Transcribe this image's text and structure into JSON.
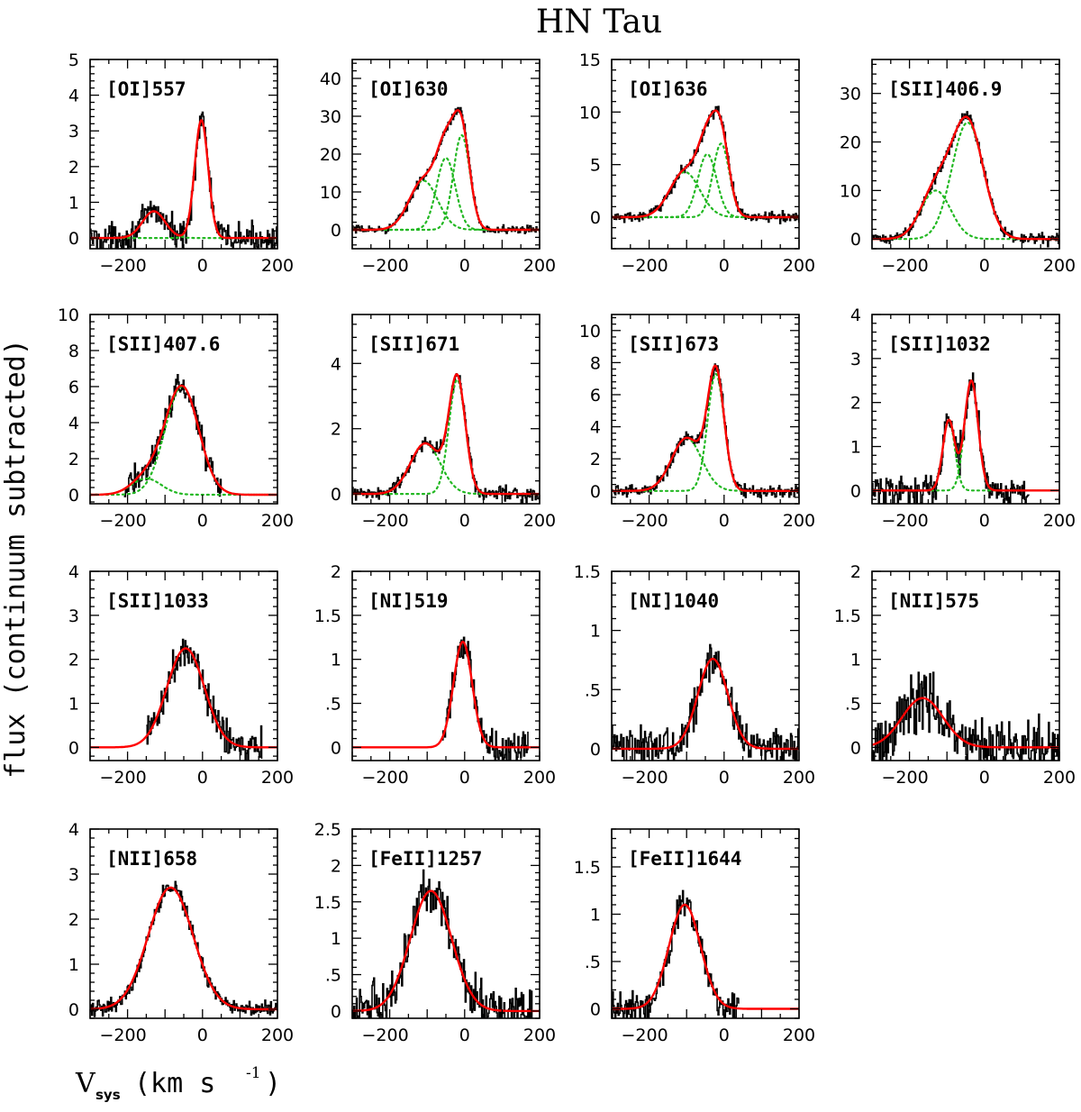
{
  "figure": {
    "title": "HN Tau",
    "ylabel": "flux (continuum subtracted)",
    "xlabel_main": "V",
    "xlabel_sub": "sys",
    "xlabel_units": "(km s",
    "xlabel_exp": "-1",
    "xlabel_close": ")",
    "colors": {
      "data": "#000000",
      "fit": "#ff0000",
      "components": "#22b822"
    }
  },
  "chart_data": [
    {
      "type": "line",
      "label": "[OI]557",
      "xlim": [
        -300,
        200
      ],
      "ylim": [
        -0.3,
        5
      ],
      "yticks": [
        0,
        1,
        2,
        3,
        4,
        5
      ],
      "xticks": [
        -200,
        0,
        200
      ],
      "noise": 0.35,
      "components": [
        {
          "amp": 3.3,
          "center": -3,
          "sigma": 18
        },
        {
          "amp": 0.75,
          "center": -130,
          "sigma": 30
        }
      ],
      "show_components": true,
      "data_range": [
        -300,
        200
      ]
    },
    {
      "type": "line",
      "label": "[OI]630",
      "xlim": [
        -300,
        200
      ],
      "ylim": [
        -5,
        45
      ],
      "yticks": [
        0,
        10,
        20,
        30,
        40
      ],
      "xticks": [
        -200,
        0,
        200
      ],
      "noise": 1.0,
      "components": [
        {
          "amp": 25,
          "center": -8,
          "sigma": 22
        },
        {
          "amp": 19,
          "center": -50,
          "sigma": 25
        },
        {
          "amp": 13,
          "center": -110,
          "sigma": 38
        }
      ],
      "show_components": true,
      "data_range": [
        -300,
        200
      ]
    },
    {
      "type": "line",
      "label": "[OI]636",
      "xlim": [
        -300,
        200
      ],
      "ylim": [
        -3,
        15
      ],
      "yticks": [
        0,
        5,
        10,
        15
      ],
      "xticks": [
        -200,
        0,
        200
      ],
      "noise": 0.45,
      "components": [
        {
          "amp": 7,
          "center": -8,
          "sigma": 22
        },
        {
          "amp": 6,
          "center": -45,
          "sigma": 25
        },
        {
          "amp": 4.3,
          "center": -105,
          "sigma": 40
        }
      ],
      "show_components": true,
      "data_range": [
        -300,
        200
      ]
    },
    {
      "type": "line",
      "label": "[SII]406.9",
      "xlim": [
        -300,
        200
      ],
      "ylim": [
        -2,
        37
      ],
      "yticks": [
        0,
        10,
        20,
        30
      ],
      "xticks": [
        -200,
        0,
        200
      ],
      "noise": 1.0,
      "components": [
        {
          "amp": 24,
          "center": -45,
          "sigma": 42
        },
        {
          "amp": 10,
          "center": -130,
          "sigma": 40
        }
      ],
      "show_components": true,
      "data_range": [
        -300,
        200
      ]
    },
    {
      "type": "line",
      "label": "[SII]407.6",
      "xlim": [
        -300,
        200
      ],
      "ylim": [
        -0.5,
        10
      ],
      "yticks": [
        0,
        2,
        4,
        6,
        8,
        10
      ],
      "xticks": [
        -200,
        0,
        200
      ],
      "noise": 0.7,
      "components": [
        {
          "amp": 6.0,
          "center": -55,
          "sigma": 45
        },
        {
          "amp": 0.9,
          "center": -150,
          "sigma": 40
        }
      ],
      "show_components": true,
      "data_range": [
        -210,
        50
      ]
    },
    {
      "type": "line",
      "label": "[SII]671",
      "xlim": [
        -300,
        200
      ],
      "ylim": [
        -0.3,
        5.5
      ],
      "yticks": [
        0,
        2,
        4
      ],
      "xticks": [
        -200,
        0,
        200
      ],
      "noise": 0.2,
      "components": [
        {
          "amp": 3.5,
          "center": -20,
          "sigma": 22
        },
        {
          "amp": 1.55,
          "center": -105,
          "sigma": 40
        }
      ],
      "show_components": true,
      "data_range": [
        -300,
        200
      ]
    },
    {
      "type": "line",
      "label": "[SII]673",
      "xlim": [
        -300,
        200
      ],
      "ylim": [
        -0.8,
        11
      ],
      "yticks": [
        0,
        2,
        4,
        6,
        8,
        10
      ],
      "xticks": [
        -200,
        0,
        200
      ],
      "noise": 0.35,
      "components": [
        {
          "amp": 7.3,
          "center": -22,
          "sigma": 22
        },
        {
          "amp": 3.3,
          "center": -100,
          "sigma": 40
        }
      ],
      "show_components": true,
      "data_range": [
        -300,
        200
      ]
    },
    {
      "type": "line",
      "label": "[SII]1032",
      "xlim": [
        -300,
        200
      ],
      "ylim": [
        -0.3,
        4
      ],
      "yticks": [
        0,
        1,
        2,
        3,
        4
      ],
      "xticks": [
        -200,
        0,
        200
      ],
      "noise": 0.35,
      "components": [
        {
          "amp": 2.5,
          "center": -35,
          "sigma": 18
        },
        {
          "amp": 1.6,
          "center": -95,
          "sigma": 16
        }
      ],
      "show_components": true,
      "data_range": [
        -300,
        120
      ]
    },
    {
      "type": "line",
      "label": "[SII]1033",
      "xlim": [
        -300,
        200
      ],
      "ylim": [
        -0.3,
        4
      ],
      "yticks": [
        0,
        1,
        2,
        3,
        4
      ],
      "xticks": [
        -200,
        0,
        200
      ],
      "noise": 0.35,
      "components": [
        {
          "amp": 2.25,
          "center": -45,
          "sigma": 50
        }
      ],
      "show_components": false,
      "data_range": [
        -150,
        160
      ]
    },
    {
      "type": "line",
      "label": "[NI]519",
      "xlim": [
        -300,
        200
      ],
      "ylim": [
        -0.15,
        2
      ],
      "yticks": [
        0,
        0.5,
        1,
        1.5,
        2
      ],
      "xticks": [
        -200,
        0,
        200
      ],
      "noise": 0.2,
      "components": [
        {
          "amp": 1.2,
          "center": -5,
          "sigma": 25
        }
      ],
      "show_components": false,
      "data_range": [
        -60,
        170
      ]
    },
    {
      "type": "line",
      "label": "[NI]1040",
      "xlim": [
        -300,
        200
      ],
      "ylim": [
        -0.1,
        1.5
      ],
      "yticks": [
        0,
        0.5,
        1,
        1.5
      ],
      "xticks": [
        -200,
        0,
        200
      ],
      "noise": 0.15,
      "components": [
        {
          "amp": 0.76,
          "center": -30,
          "sigma": 40
        }
      ],
      "show_components": false,
      "data_range": [
        -300,
        200
      ]
    },
    {
      "type": "line",
      "label": "[NII]575",
      "xlim": [
        -300,
        200
      ],
      "ylim": [
        -0.15,
        2
      ],
      "yticks": [
        0,
        0.5,
        1,
        1.5,
        2
      ],
      "xticks": [
        -200,
        0,
        200
      ],
      "noise": 0.3,
      "components": [
        {
          "amp": 0.56,
          "center": -165,
          "sigma": 55
        }
      ],
      "show_components": false,
      "data_range": [
        -300,
        200
      ]
    },
    {
      "type": "line",
      "label": "[NII]658",
      "xlim": [
        -300,
        200
      ],
      "ylim": [
        -0.2,
        4
      ],
      "yticks": [
        0,
        1,
        2,
        3,
        4
      ],
      "xticks": [
        -200,
        0,
        200
      ],
      "noise": 0.15,
      "components": [
        {
          "amp": 2.7,
          "center": -85,
          "sigma": 60
        }
      ],
      "show_components": false,
      "data_range": [
        -300,
        200
      ]
    },
    {
      "type": "line",
      "label": "[FeII]1257",
      "xlim": [
        -300,
        200
      ],
      "ylim": [
        -0.1,
        2.5
      ],
      "yticks": [
        0,
        0.5,
        1,
        1.5,
        2,
        2.5
      ],
      "xticks": [
        -200,
        0,
        200
      ],
      "noise": 0.3,
      "components": [
        {
          "amp": 1.65,
          "center": -90,
          "sigma": 55
        }
      ],
      "show_components": false,
      "data_range": [
        -300,
        180
      ]
    },
    {
      "type": "line",
      "label": "[FeII]1644",
      "xlim": [
        -300,
        200
      ],
      "ylim": [
        -0.1,
        1.9
      ],
      "yticks": [
        0,
        0.5,
        1,
        1.5
      ],
      "xticks": [
        -200,
        0,
        200
      ],
      "noise": 0.15,
      "components": [
        {
          "amp": 1.1,
          "center": -105,
          "sigma": 42
        }
      ],
      "show_components": false,
      "data_range": [
        -300,
        40
      ]
    }
  ]
}
